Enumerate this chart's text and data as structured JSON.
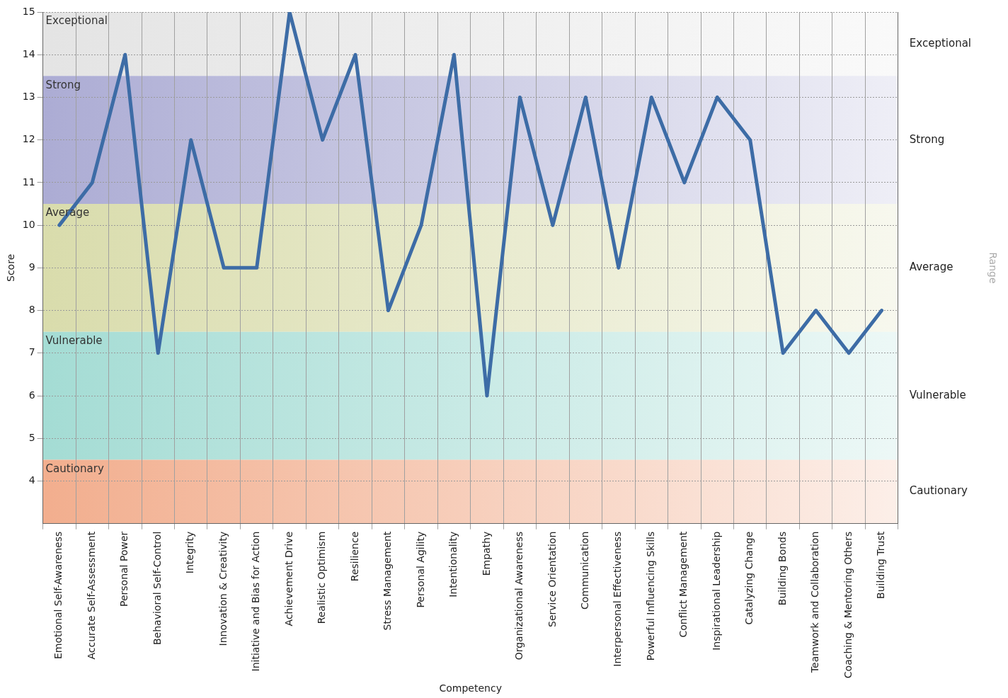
{
  "chart_data": {
    "type": "line",
    "xlabel": "Competency",
    "ylabel": "Score",
    "annotations": [
      "Range"
    ],
    "categories": [
      "Emotional Self-Awareness",
      "Accurate Self-Assessment",
      "Personal Power",
      "Behavioral Self-Control",
      "Integrity",
      "Innovation & Creativity",
      "Initiative and Bias for Action",
      "Achievement Drive",
      "Realistic Optimism",
      "Resilience",
      "Stress Management",
      "Personal Agility",
      "Intentionality",
      "Empathy",
      "Organizational Awareness",
      "Service Orientation",
      "Communication",
      "Interpersonal Effectiveness",
      "Powerful Influencing Skills",
      "Conflict Management",
      "Inspirational Leadership",
      "Catalyzing Change",
      "Building Bonds",
      "Teamwork and Collaboration",
      "Coaching & Mentoring Others",
      "Building Trust"
    ],
    "series": [
      {
        "color": "#3d6ca6",
        "values": [
          10,
          11,
          14,
          7,
          12,
          9,
          9,
          15,
          12,
          14,
          8,
          10,
          14,
          6,
          13,
          10,
          13,
          9,
          13,
          11,
          13,
          12,
          7,
          8,
          7,
          8
        ]
      }
    ],
    "ylim": [
      3,
      15
    ],
    "yticks": [
      4,
      5,
      6,
      7,
      8,
      9,
      10,
      11,
      12,
      13,
      14,
      15
    ],
    "bands": [
      {
        "axis": "y",
        "from": 13.5,
        "to": 15,
        "label": "Exceptional",
        "color": "#e4e4e4"
      },
      {
        "axis": "y",
        "from": 10.5,
        "to": 13.5,
        "label": "Strong",
        "color": "#acacd4"
      },
      {
        "axis": "y",
        "from": 7.5,
        "to": 10.5,
        "label": "Average",
        "color": "#d9dcac"
      },
      {
        "axis": "y",
        "from": 4.5,
        "to": 7.5,
        "label": "Vulnerable",
        "color": "#a4dcd4"
      },
      {
        "axis": "y",
        "from": 3,
        "to": 4.5,
        "label": "Cautionary",
        "color": "#f2ae8e"
      }
    ],
    "grid": true,
    "legend": false,
    "marker": "none",
    "line_style": "solid"
  }
}
